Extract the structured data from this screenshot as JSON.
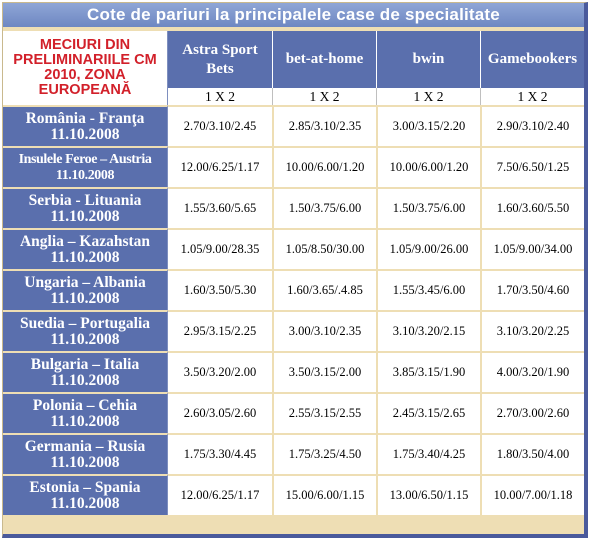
{
  "title": "Cote de pariuri la principalele case de specialitate",
  "header": {
    "match_col": "MECIURI DIN PRELIMINARIILE CM 2010, ZONA EUROPEANĂ",
    "bookmakers": [
      "Astra Sport Bets",
      "bet-at-home",
      "bwin",
      "Gamebookers"
    ],
    "sub_label": "1 X 2"
  },
  "rows": [
    {
      "match": "România - Franţa",
      "date": "11.10.2008",
      "odds": [
        "2.70/3.10/2.45",
        "2.85/3.10/2.35",
        "3.00/3.15/2.20",
        "2.90/3.10/2.40"
      ]
    },
    {
      "match": "Insulele Feroe – Austria",
      "date": "11.10.2008",
      "odds": [
        "12.00/6.25/1.17",
        "10.00/6.00/1.20",
        "10.00/6.00/1.20",
        "7.50/6.50/1.25"
      ]
    },
    {
      "match": "Serbia - Lituania",
      "date": "11.10.2008",
      "odds": [
        "1.55/3.60/5.65",
        "1.50/3.75/6.00",
        "1.50/3.75/6.00",
        "1.60/3.60/5.50"
      ]
    },
    {
      "match": "Anglia – Kazahstan",
      "date": "11.10.2008",
      "odds": [
        "1.05/9.00/28.35",
        "1.05/8.50/30.00",
        "1.05/9.00/26.00",
        "1.05/9.00/34.00"
      ]
    },
    {
      "match": "Ungaria – Albania",
      "date": "11.10.2008",
      "odds": [
        "1.60/3.50/5.30",
        "1.60/3.65/.4.85",
        "1.55/3.45/6.00",
        "1.70/3.50/4.60"
      ]
    },
    {
      "match": "Suedia – Portugalia",
      "date": "11.10.2008",
      "odds": [
        "2.95/3.15/2.25",
        "3.00/3.10/2.35",
        "3.10/3.20/2.15",
        "3.10/3.20/2.25"
      ]
    },
    {
      "match": "Bulgaria – Italia",
      "date": "11.10.2008",
      "odds": [
        "3.50/3.20/2.00",
        "3.50/3.15/2.00",
        "3.85/3.15/1.90",
        "4.00/3.20/1.90"
      ]
    },
    {
      "match": "Polonia – Cehia",
      "date": "11.10.2008",
      "odds": [
        "2.60/3.05/2.60",
        "2.55/3.15/2.55",
        "2.45/3.15/2.65",
        "2.70/3.00/2.60"
      ]
    },
    {
      "match": "Germania – Rusia",
      "date": "11.10.2008",
      "odds": [
        "1.75/3.30/4.45",
        "1.75/3.25/4.50",
        "1.75/3.40/4.25",
        "1.80/3.50/4.00"
      ]
    },
    {
      "match": "Estonia – Spania",
      "date": "11.10.2008",
      "odds": [
        "12.00/6.25/1.17",
        "15.00/6.00/1.15",
        "13.00/6.50/1.15",
        "10.00/7.00/1.18"
      ]
    }
  ]
}
